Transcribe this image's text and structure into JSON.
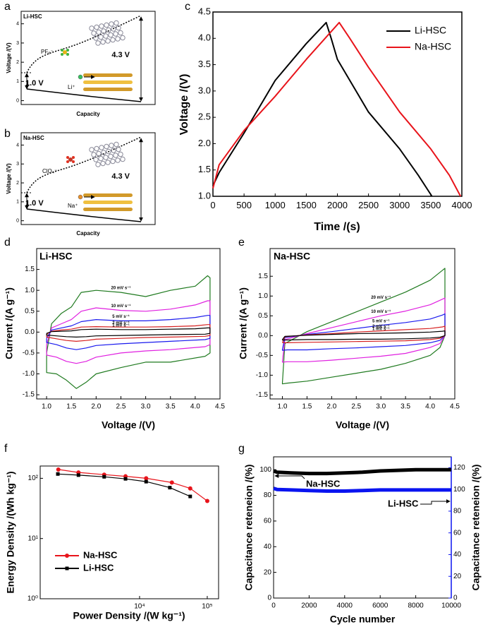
{
  "chart_data": [
    {
      "type": "schematic",
      "panel": "a",
      "title": "Li-HSC",
      "y_label": "Voltage /(V)",
      "x_label": "Capacity",
      "ylim": [
        -0.2,
        4.65
      ],
      "yticks": [
        0,
        1,
        2,
        3,
        4
      ],
      "annotations": [
        "1.0 V",
        "4.3 V",
        "PF₆⁻",
        "Li⁺"
      ]
    },
    {
      "type": "schematic",
      "panel": "b",
      "title": "Na-HSC",
      "y_label": "Voltage /(V)",
      "x_label": "Capacity",
      "ylim": [
        -0.2,
        4.65
      ],
      "yticks": [
        0,
        1,
        2,
        3,
        4
      ],
      "annotations": [
        "1.0 V",
        "4.3 V",
        "ClO₄⁻",
        "Na⁺"
      ]
    },
    {
      "type": "line",
      "panel": "c",
      "x_label": "Time /(s)",
      "y_label": "Voltage /(V)",
      "xlim": [
        0,
        4000
      ],
      "xticks": [
        0,
        500,
        1000,
        1500,
        2000,
        2500,
        3000,
        3500,
        4000
      ],
      "ylim": [
        1.0,
        4.5
      ],
      "yticks": [
        {
          "value": 1.0,
          "label": "1.0"
        },
        1.5,
        {
          "value": 2.0,
          "label": "2.0"
        },
        2.5,
        {
          "value": 3.0,
          "label": "3.0"
        },
        3.5,
        {
          "value": 4.0,
          "label": "4.0"
        },
        4.5
      ],
      "legend": "upper right",
      "series": [
        {
          "name": "Li-HSC",
          "color": "#000000",
          "x": [
            0,
            100,
            500,
            1000,
            1500,
            1820,
            1900,
            2000,
            2500,
            3000,
            3300,
            3520
          ],
          "values": [
            1.2,
            1.45,
            2.2,
            3.2,
            3.9,
            4.3,
            4.0,
            3.6,
            2.6,
            1.9,
            1.4,
            1.0
          ]
        },
        {
          "name": "Na-HSC",
          "color": "#e8141b",
          "x": [
            0,
            100,
            500,
            1000,
            1500,
            2030,
            2200,
            2500,
            3000,
            3500,
            3800,
            3980
          ],
          "values": [
            1.15,
            1.6,
            2.25,
            2.9,
            3.6,
            4.3,
            4.0,
            3.45,
            2.6,
            1.9,
            1.4,
            1.0
          ]
        }
      ]
    },
    {
      "type": "line",
      "panel": "d",
      "title": "Li-HSC",
      "x_label": "Voltage /(V)",
      "y_label": "Current /(A g⁻¹)",
      "xlim": [
        0.8,
        4.5
      ],
      "xticks": [
        {
          "value": 1.0,
          "label": "1.0"
        },
        1.5,
        {
          "value": 2.0,
          "label": "2.0"
        },
        2.5,
        {
          "value": 3.0,
          "label": "3.0"
        },
        3.5,
        {
          "value": 4.0,
          "label": "4.0"
        },
        4.5
      ],
      "ylim": [
        -1.6,
        2.0
      ],
      "yticks": [
        -1.5,
        {
          "value": -1.0,
          "label": "-1.0"
        },
        -0.5,
        {
          "value": 0.0,
          "label": "0.0"
        },
        0.5,
        {
          "value": 1.0,
          "label": "1.0"
        },
        1.5
      ],
      "x": [
        1.0,
        1.1,
        1.3,
        1.5,
        1.7,
        2.0,
        2.5,
        3.0,
        3.5,
        4.0,
        4.25,
        4.3,
        4.3,
        4.2,
        3.5,
        3.0,
        2.5,
        2.0,
        1.8,
        1.6,
        1.4,
        1.2,
        1.0,
        1.0
      ],
      "series": [
        {
          "name": "20 mV s⁻¹",
          "color": "#1f7a1f",
          "values": [
            -0.5,
            0.2,
            0.45,
            0.6,
            0.95,
            1.0,
            0.95,
            0.85,
            1.0,
            1.1,
            1.35,
            1.3,
            -0.5,
            -0.58,
            -0.72,
            -0.72,
            -0.85,
            -1.0,
            -1.2,
            -1.35,
            -1.15,
            -1.0,
            -0.97,
            -0.5
          ]
        },
        {
          "name": "10 mV s⁻¹",
          "color": "#e020e0",
          "values": [
            -0.3,
            0.1,
            0.2,
            0.3,
            0.5,
            0.58,
            0.52,
            0.5,
            0.55,
            0.65,
            0.75,
            0.75,
            -0.3,
            -0.35,
            -0.42,
            -0.45,
            -0.5,
            -0.6,
            -0.7,
            -0.75,
            -0.7,
            -0.6,
            -0.55,
            -0.3
          ]
        },
        {
          "name": "5 mV s⁻¹",
          "color": "#1a1aee",
          "values": [
            -0.15,
            0.05,
            0.1,
            0.15,
            0.25,
            0.3,
            0.27,
            0.27,
            0.3,
            0.35,
            0.4,
            0.4,
            -0.15,
            -0.18,
            -0.22,
            -0.25,
            -0.28,
            -0.32,
            -0.38,
            -0.42,
            -0.38,
            -0.3,
            -0.25,
            -0.15
          ]
        },
        {
          "name": "2 mV s⁻¹",
          "color": "#d62020",
          "values": [
            -0.05,
            0.02,
            0.05,
            0.07,
            0.12,
            0.13,
            0.12,
            0.12,
            0.13,
            0.15,
            0.18,
            0.18,
            -0.08,
            -0.1,
            -0.12,
            -0.13,
            -0.15,
            -0.17,
            -0.2,
            -0.22,
            -0.2,
            -0.16,
            -0.12,
            -0.05
          ]
        },
        {
          "name": "1 mV s⁻¹",
          "color": "#000000",
          "values": [
            -0.03,
            0.01,
            0.02,
            0.03,
            0.06,
            0.07,
            0.06,
            0.06,
            0.07,
            0.08,
            0.1,
            0.1,
            -0.03,
            -0.05,
            -0.06,
            -0.07,
            -0.08,
            -0.09,
            -0.11,
            -0.12,
            -0.11,
            -0.09,
            -0.07,
            -0.03
          ]
        }
      ]
    },
    {
      "type": "line",
      "panel": "e",
      "title": "Na-HSC",
      "x_label": "Voltage /(V)",
      "y_label": "Current /(A g⁻¹)",
      "xlim": [
        0.75,
        4.5
      ],
      "xticks": [
        {
          "value": 1.0,
          "label": "1.0"
        },
        1.5,
        {
          "value": 2.0,
          "label": "2.0"
        },
        2.5,
        {
          "value": 3.0,
          "label": "3.0"
        },
        3.5,
        {
          "value": 4.0,
          "label": "4.0"
        },
        4.5
      ],
      "ylim": [
        -1.6,
        2.2
      ],
      "yticks": [
        -1.5,
        {
          "value": -1.0,
          "label": "-1.0"
        },
        -0.5,
        {
          "value": 0.0,
          "label": "0.0"
        },
        0.5,
        {
          "value": 1.0,
          "label": "1.0"
        },
        1.5
      ],
      "x": [
        1.0,
        1.05,
        1.5,
        2.0,
        2.5,
        3.0,
        3.5,
        4.0,
        4.25,
        4.3,
        4.3,
        4.2,
        4.0,
        3.5,
        3.0,
        2.5,
        2.0,
        1.5,
        1.1,
        1.0,
        1.0
      ],
      "series": [
        {
          "name": "20 mV s⁻¹",
          "color": "#1f7a1f",
          "values": [
            -1.2,
            -0.2,
            0.1,
            0.35,
            0.6,
            0.85,
            1.1,
            1.4,
            1.65,
            1.7,
            0.0,
            -0.3,
            -0.5,
            -0.7,
            -0.85,
            -0.95,
            -1.05,
            -1.15,
            -1.2,
            -1.22,
            -1.2
          ]
        },
        {
          "name": "10 mV s⁻¹",
          "color": "#e020e0",
          "values": [
            -0.65,
            -0.1,
            0.05,
            0.2,
            0.35,
            0.5,
            0.62,
            0.78,
            0.92,
            0.95,
            0.0,
            -0.2,
            -0.3,
            -0.45,
            -0.52,
            -0.57,
            -0.62,
            -0.66,
            -0.66,
            -0.67,
            -0.65
          ]
        },
        {
          "name": "5 mV s⁻¹",
          "color": "#1a1aee",
          "values": [
            -0.35,
            -0.05,
            0.03,
            0.1,
            0.18,
            0.26,
            0.33,
            0.42,
            0.52,
            0.55,
            0.0,
            -0.12,
            -0.18,
            -0.25,
            -0.28,
            -0.31,
            -0.33,
            -0.36,
            -0.36,
            -0.37,
            -0.35
          ]
        },
        {
          "name": "2 mV s⁻¹",
          "color": "#d62020",
          "values": [
            -0.18,
            -0.03,
            0.02,
            0.05,
            0.09,
            0.12,
            0.15,
            0.18,
            0.22,
            0.24,
            0.0,
            -0.07,
            -0.1,
            -0.13,
            -0.14,
            -0.15,
            -0.16,
            -0.17,
            -0.18,
            -0.18,
            -0.18
          ]
        },
        {
          "name": "1 mV s⁻¹",
          "color": "#000000",
          "values": [
            -0.1,
            -0.02,
            0.01,
            0.03,
            0.05,
            0.06,
            0.07,
            0.09,
            0.11,
            0.12,
            0.0,
            -0.04,
            -0.06,
            -0.08,
            -0.09,
            -0.09,
            -0.1,
            -0.1,
            -0.11,
            -0.11,
            -0.1
          ]
        }
      ]
    },
    {
      "type": "line",
      "panel": "f",
      "x_label": "Power Density /(W kg⁻¹)",
      "y_label": "Energy Density /(Wh kg⁻¹)",
      "xscale": "log",
      "yscale": "log",
      "xlim": [
        340,
        147000
      ],
      "xticks": [
        {
          "value": 10000,
          "label": "10⁴"
        },
        {
          "value": 100000,
          "label": "10⁵"
        }
      ],
      "ylim": [
        1,
        160
      ],
      "yticks": [
        {
          "value": 1,
          "label": "10⁰"
        },
        {
          "value": 10,
          "label": "10¹"
        },
        {
          "value": 100,
          "label": "10²"
        }
      ],
      "legend": "lower left",
      "series": [
        {
          "name": "Na-HSC",
          "color": "#e8141b",
          "marker": "circle",
          "x": [
            630,
            1250,
            3000,
            6200,
            12500,
            30000,
            56000,
            100000
          ],
          "values": [
            140,
            125,
            115,
            108,
            100,
            85,
            68,
            42
          ]
        },
        {
          "name": "Li-HSC",
          "color": "#000000",
          "marker": "square",
          "x": [
            620,
            1250,
            3000,
            6200,
            12500,
            28000,
            56000
          ],
          "values": [
            118,
            113,
            106,
            98,
            88,
            70,
            50
          ]
        }
      ]
    },
    {
      "type": "line",
      "panel": "g",
      "x_label": "Cycle number",
      "y_label": "Capacitance reteneion /(%)",
      "y2_label": "Capacitance reteneion /(%)",
      "xlim": [
        0,
        10000
      ],
      "xticks": [
        0,
        2000,
        4000,
        6000,
        8000,
        10000
      ],
      "ylim": [
        0,
        110
      ],
      "yticks": [
        0,
        20,
        40,
        60,
        80,
        100
      ],
      "y2lim": [
        0,
        130
      ],
      "y2ticks": [
        0,
        20,
        40,
        60,
        80,
        100,
        120
      ],
      "x": [
        0,
        200,
        1000,
        2000,
        3000,
        4000,
        5000,
        6000,
        7000,
        8000,
        9000,
        10000
      ],
      "series": [
        {
          "name": "Na-HSC",
          "color": "#000000",
          "values": [
            99,
            98,
            97.5,
            97,
            97,
            97.5,
            98,
            99,
            99.5,
            100,
            100,
            100
          ]
        },
        {
          "name": "Li-HSC",
          "color": "#0a14f0",
          "axis": "y2",
          "values": [
            101,
            100,
            99.5,
            99,
            98.5,
            98.5,
            99,
            99.5,
            99.5,
            99.5,
            99.5,
            99.5
          ]
        }
      ]
    }
  ]
}
